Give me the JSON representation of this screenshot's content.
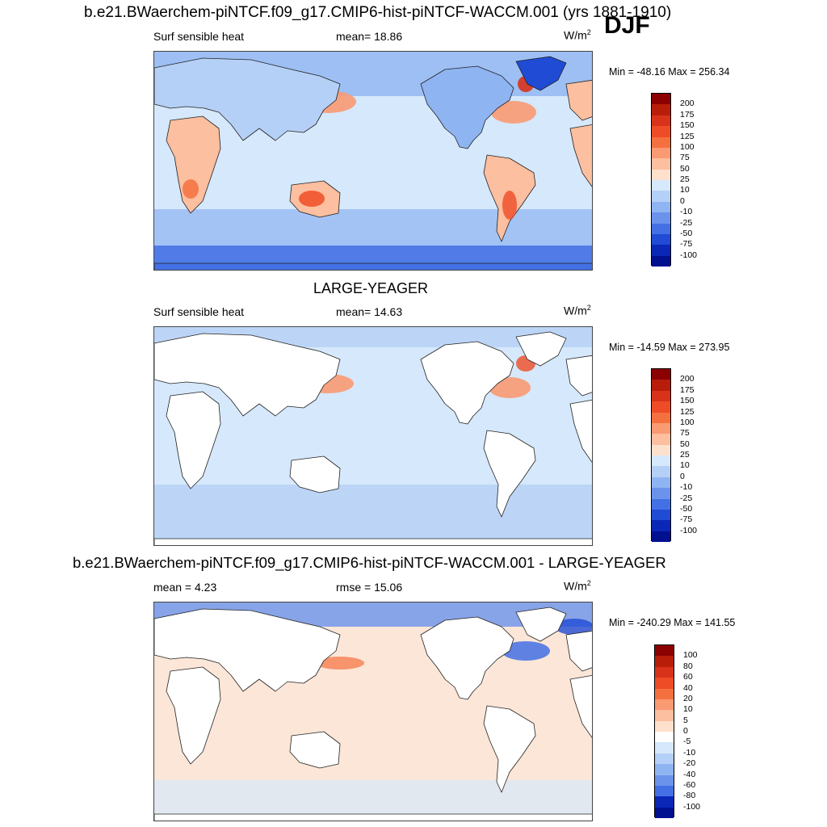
{
  "header": {
    "top_title": "b.e21.BWaerchem-piNTCF.f09_g17.CMIP6-hist-piNTCF-WACCM.001 (yrs 1881-1910)",
    "season": "DJF"
  },
  "panels": [
    {
      "title": "b.e21.BWaerchem-piNTCF.f09_g17.CMIP6-hist-piNTCF-WACCM.001 (yrs 1881-1910)",
      "left_label": "Surf sensible heat",
      "center_label": "mean=  18.86",
      "units": "W/m",
      "units_exp": "2",
      "minmax": "Min = -48.16 Max = 256.34",
      "colorbar_labels": [
        "200",
        "175",
        "150",
        "125",
        "100",
        "75",
        "50",
        "25",
        "10",
        "0",
        "-10",
        "-25",
        "-50",
        "-75",
        "-100"
      ],
      "colorbar_colors": [
        "#8b0000",
        "#b81d0a",
        "#d8331a",
        "#ee4c26",
        "#f5703f",
        "#f99a73",
        "#fcbf9f",
        "#fde1cc",
        "#d6e8fb",
        "#b5d0f6",
        "#8fb4f2",
        "#6b93ec",
        "#4370e4",
        "#1f4bd5",
        "#0a27b8",
        "#00108f"
      ],
      "map_type": "absolute"
    },
    {
      "title": "LARGE-YEAGER",
      "left_label": "Surf sensible heat",
      "center_label": "mean=  14.63",
      "units": "W/m",
      "units_exp": "2",
      "minmax": "Min = -14.59 Max = 273.95",
      "colorbar_labels": [
        "200",
        "175",
        "150",
        "125",
        "100",
        "75",
        "50",
        "25",
        "10",
        "0",
        "-10",
        "-25",
        "-50",
        "-75",
        "-100"
      ],
      "colorbar_colors": [
        "#8b0000",
        "#b81d0a",
        "#d8331a",
        "#ee4c26",
        "#f5703f",
        "#f99a73",
        "#fcbf9f",
        "#fde1cc",
        "#d6e8fb",
        "#b5d0f6",
        "#8fb4f2",
        "#6b93ec",
        "#4370e4",
        "#1f4bd5",
        "#0a27b8",
        "#00108f"
      ],
      "map_type": "obs"
    },
    {
      "title": "b.e21.BWaerchem-piNTCF.f09_g17.CMIP6-hist-piNTCF-WACCM.001 - LARGE-YEAGER",
      "left_label": "mean =   4.23",
      "center_label": "rmse =  15.06",
      "units": "W/m",
      "units_exp": "2",
      "minmax": "Min = -240.29 Max = 141.55",
      "colorbar_labels": [
        "100",
        "80",
        "60",
        "40",
        "20",
        "10",
        "5",
        "0",
        "-5",
        "-10",
        "-20",
        "-40",
        "-60",
        "-80",
        "-100"
      ],
      "colorbar_colors": [
        "#8b0000",
        "#b81d0a",
        "#d8331a",
        "#ee4c26",
        "#f5703f",
        "#f99a73",
        "#fcbf9f",
        "#fde1cc",
        "#ffffff",
        "#d6e8fb",
        "#b5d0f6",
        "#8fb4f2",
        "#6b93ec",
        "#4370e4",
        "#0a27b8",
        "#00108f"
      ],
      "map_type": "diff"
    }
  ]
}
